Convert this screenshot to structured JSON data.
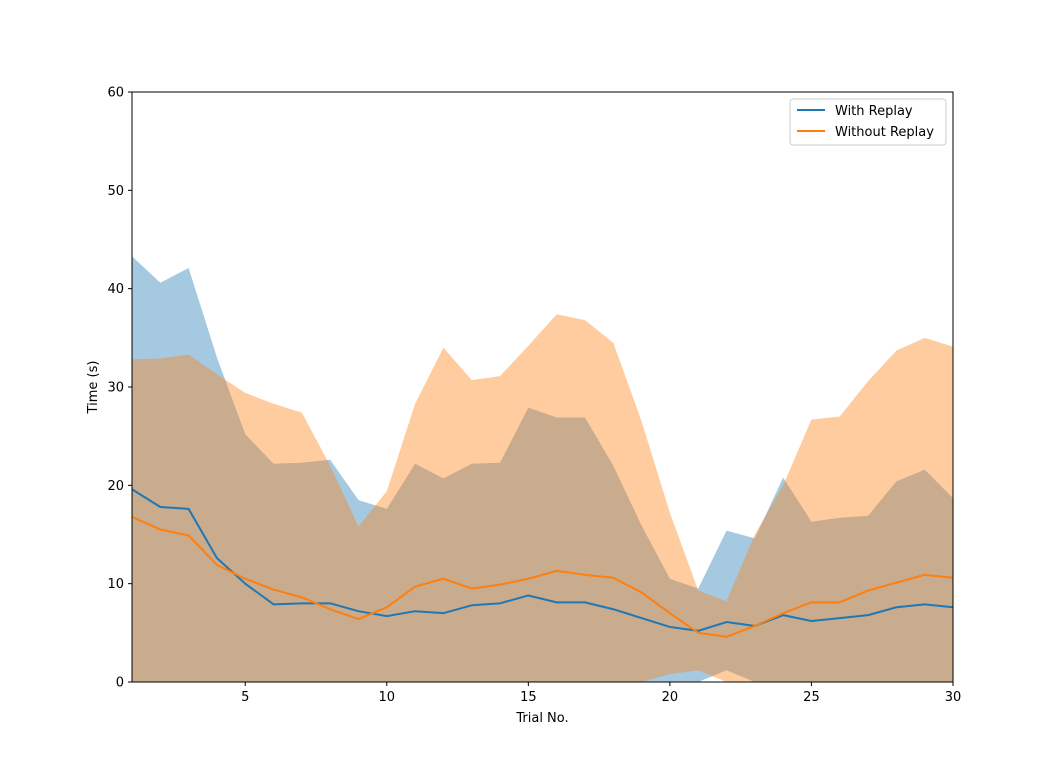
{
  "chart_data": {
    "type": "line",
    "title": "",
    "xlabel": "Trial No.",
    "ylabel": "Time (s)",
    "xlim": [
      1,
      30
    ],
    "ylim": [
      0,
      60
    ],
    "xticks": [
      5,
      10,
      15,
      20,
      25,
      30
    ],
    "yticks": [
      0,
      10,
      20,
      30,
      40,
      50,
      60
    ],
    "grid": false,
    "legend": "top-right",
    "x": [
      1,
      2,
      3,
      4,
      5,
      6,
      7,
      8,
      9,
      10,
      11,
      12,
      13,
      14,
      15,
      16,
      17,
      18,
      19,
      20,
      21,
      22,
      23,
      24,
      25,
      26,
      27,
      28,
      29,
      30
    ],
    "series": [
      {
        "name": "With Replay",
        "color": "#1f77b4",
        "band_color": "#a6c8e0",
        "values": [
          19.6,
          17.8,
          17.6,
          12.6,
          10.0,
          7.9,
          8.0,
          8.0,
          7.2,
          6.7,
          7.2,
          7.0,
          7.8,
          8.0,
          8.8,
          8.1,
          8.1,
          7.4,
          6.5,
          5.6,
          5.2,
          6.1,
          5.7,
          6.8,
          6.2,
          6.5,
          6.8,
          7.6,
          7.9,
          7.6
        ],
        "upper": [
          43.3,
          40.6,
          42.1,
          33.0,
          25.2,
          22.2,
          22.3,
          22.6,
          18.5,
          17.6,
          22.2,
          20.7,
          22.2,
          22.3,
          27.9,
          26.9,
          26.9,
          22.0,
          15.9,
          10.5,
          9.5,
          15.4,
          14.6,
          20.8,
          16.3,
          16.7,
          16.9,
          20.4,
          21.6,
          18.7
        ],
        "lower": [
          0,
          0,
          0,
          0,
          0,
          0,
          0,
          0,
          0,
          0,
          0,
          0,
          0,
          0,
          0,
          0,
          0,
          0,
          0,
          0,
          0,
          1.2,
          0,
          0,
          0,
          0,
          0,
          0,
          0,
          0
        ]
      },
      {
        "name": "Without Replay",
        "color": "#ff7f0e",
        "band_color": "#fee2cb",
        "values": [
          16.8,
          15.5,
          14.9,
          11.9,
          10.5,
          9.4,
          8.6,
          7.4,
          6.4,
          7.6,
          9.7,
          10.5,
          9.5,
          9.9,
          10.5,
          11.3,
          10.9,
          10.6,
          9.1,
          7.0,
          5.0,
          4.6,
          5.7,
          7.0,
          8.1,
          8.1,
          9.3,
          10.1,
          10.9,
          10.6
        ],
        "upper": [
          32.8,
          32.9,
          33.3,
          31.3,
          29.4,
          28.3,
          27.4,
          22.0,
          15.8,
          19.4,
          28.3,
          34.0,
          30.7,
          31.1,
          34.2,
          37.4,
          36.8,
          34.5,
          26.5,
          17.2,
          9.3,
          8.2,
          15.0,
          20.0,
          26.7,
          27.0,
          30.6,
          33.7,
          35.0,
          34.1
        ],
        "lower": [
          0,
          0,
          0,
          0,
          0,
          0,
          0,
          0,
          0,
          0,
          0,
          0,
          0,
          0,
          0,
          0,
          0,
          0,
          0,
          0.8,
          1.2,
          0,
          0,
          0,
          0,
          0,
          0,
          0,
          0,
          0
        ]
      }
    ]
  }
}
